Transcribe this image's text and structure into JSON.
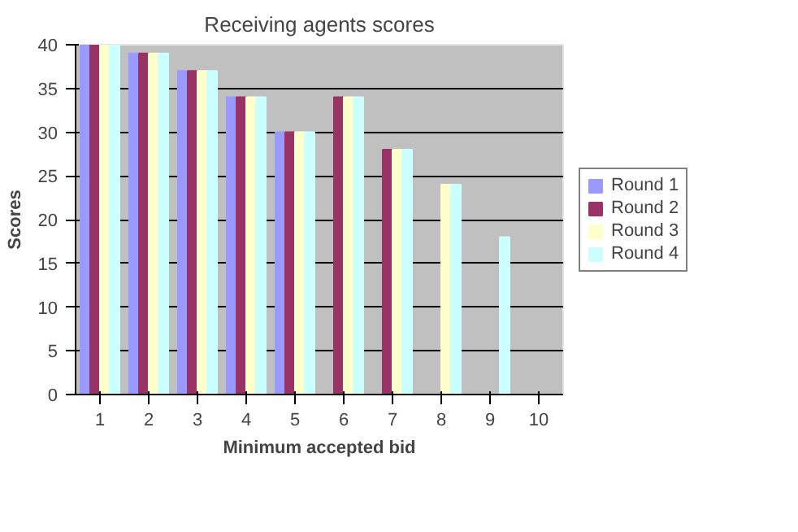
{
  "chart_data": {
    "type": "bar",
    "title": "Receiving agents scores",
    "xlabel": "Minimum accepted bid",
    "ylabel": "Scores",
    "categories": [
      "1",
      "2",
      "3",
      "4",
      "5",
      "6",
      "7",
      "8",
      "9",
      "10"
    ],
    "series": [
      {
        "name": "Round 1",
        "color": "#9999ff",
        "values": [
          40,
          39,
          37,
          34,
          30,
          0,
          0,
          0,
          0,
          0
        ]
      },
      {
        "name": "Round 2",
        "color": "#993366",
        "values": [
          40,
          39,
          37,
          34,
          30,
          34,
          28,
          0,
          0,
          0
        ]
      },
      {
        "name": "Round 3",
        "color": "#ffffcc",
        "values": [
          40,
          39,
          37,
          34,
          30,
          34,
          28,
          24,
          0,
          0
        ]
      },
      {
        "name": "Round 4",
        "color": "#ccffff",
        "values": [
          40,
          39,
          37,
          34,
          30,
          34,
          28,
          24,
          18,
          0
        ]
      }
    ],
    "ylim": [
      0,
      40
    ],
    "yticks": [
      0,
      5,
      10,
      15,
      20,
      25,
      30,
      35,
      40
    ],
    "grid": "y",
    "legend": "right"
  }
}
